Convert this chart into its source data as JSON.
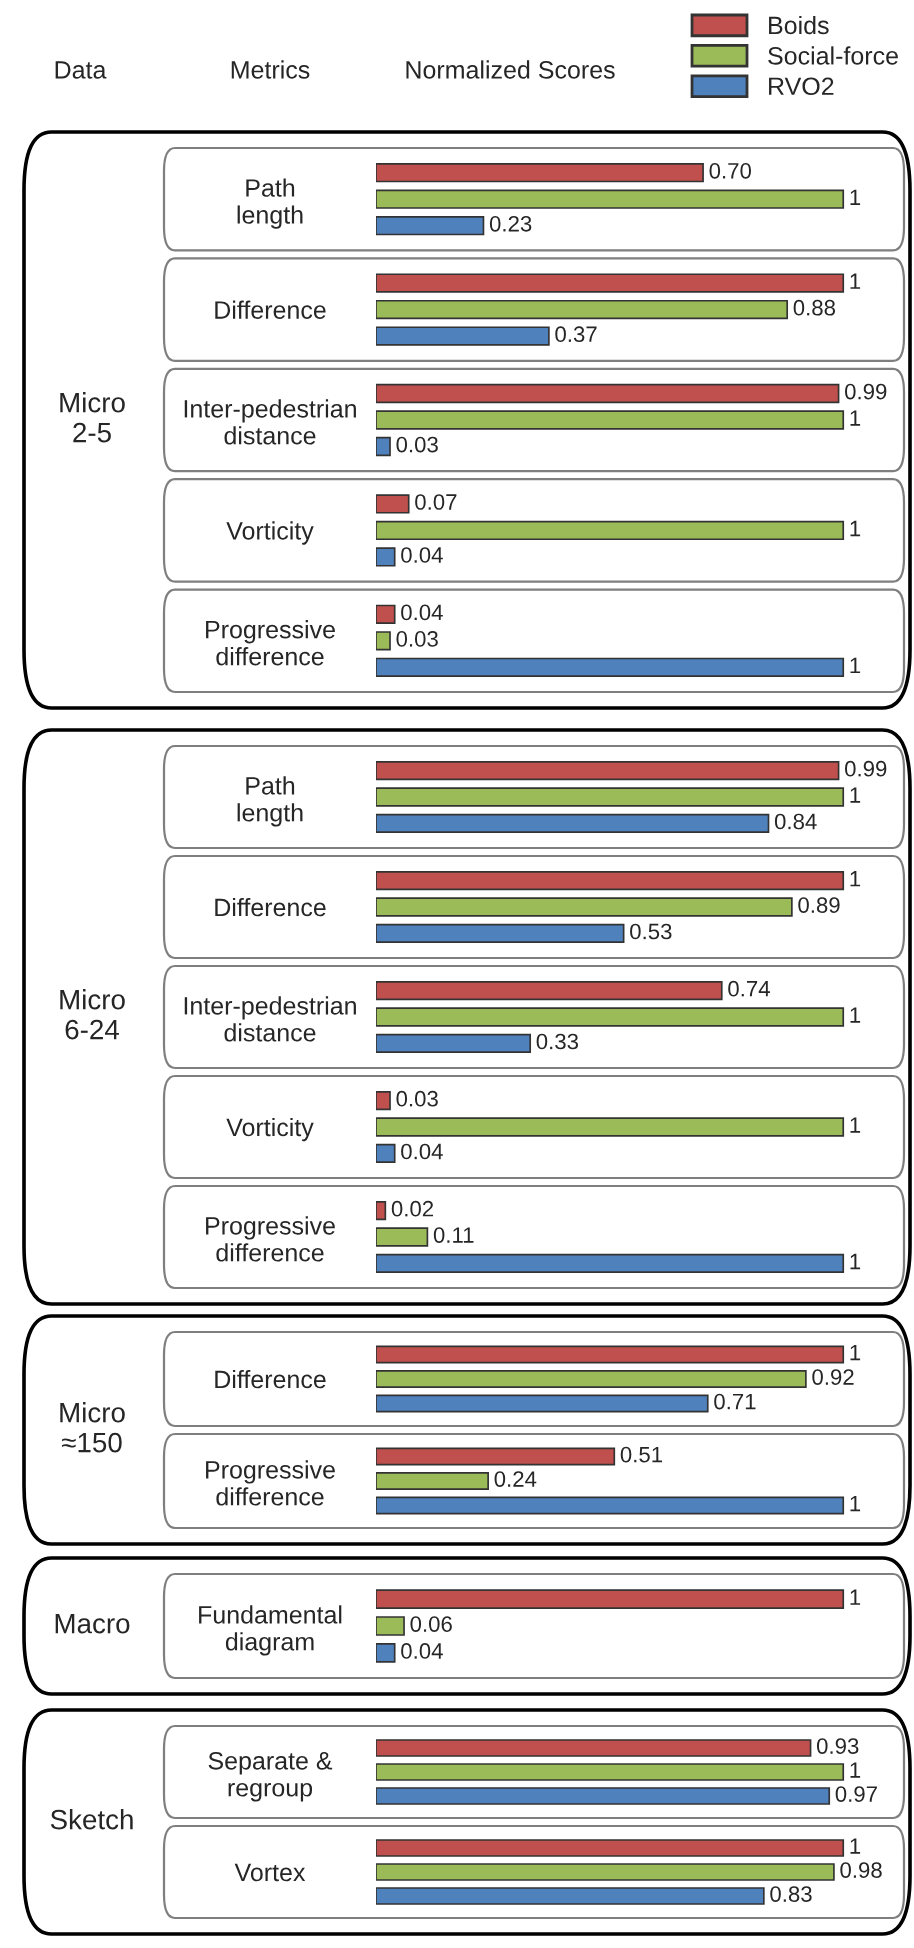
{
  "chart_data": [
    {
      "type": "bar",
      "orientation": "horizontal",
      "title": "Micro 2-5",
      "legend": "top right",
      "tick_labels": "y",
      "annotations": [
        "Data",
        "Metrics",
        "Normalized Scores"
      ],
      "categories": [
        "Path length",
        "Difference",
        "Inter-pedestrian distance",
        "Vorticity",
        "Progressive difference"
      ],
      "series": [
        {
          "name": "Boids",
          "color": "#c0504d",
          "values": [
            0.7,
            1,
            0.99,
            0.07,
            0.04
          ],
          "value_labels": [
            "0.70",
            "1",
            "0.99",
            "0.07",
            "0.04"
          ]
        },
        {
          "name": "Social-force",
          "color": "#9bbb59",
          "values": [
            1,
            0.88,
            1,
            1,
            0.03
          ],
          "value_labels": [
            "1",
            "0.88",
            "1",
            "1",
            "0.03"
          ]
        },
        {
          "name": "RVO2",
          "color": "#4f81bd",
          "values": [
            0.23,
            0.37,
            0.03,
            0.04,
            1
          ],
          "value_labels": [
            "0.23",
            "0.37",
            "0.03",
            "0.04",
            "1"
          ]
        }
      ]
    },
    {
      "type": "bar",
      "orientation": "horizontal",
      "title": "Micro 6-24",
      "tick_labels": "y",
      "categories": [
        "Path length",
        "Difference",
        "Inter-pedestrian distance",
        "Vorticity",
        "Progressive difference"
      ],
      "series": [
        {
          "color": "#c0504d",
          "values": [
            0.99,
            1,
            0.74,
            0.03,
            0.02
          ],
          "value_labels": [
            "0.99",
            "1",
            "0.74",
            "0.03",
            "0.02"
          ]
        },
        {
          "color": "#9bbb59",
          "values": [
            1,
            0.89,
            1,
            1,
            0.11
          ],
          "value_labels": [
            "1",
            "0.89",
            "1",
            "1",
            "0.11"
          ]
        },
        {
          "color": "#4f81bd",
          "values": [
            0.84,
            0.53,
            0.33,
            0.04,
            1
          ],
          "value_labels": [
            "0.84",
            "0.53",
            "0.33",
            "0.04",
            "1"
          ]
        }
      ]
    },
    {
      "type": "bar",
      "orientation": "horizontal",
      "title": "Micro ≈150",
      "tick_labels": "y",
      "categories": [
        "Difference",
        "Progressive difference"
      ],
      "series": [
        {
          "color": "#c0504d",
          "values": [
            1,
            0.51
          ],
          "value_labels": [
            "1",
            "0.51"
          ]
        },
        {
          "color": "#9bbb59",
          "values": [
            0.92,
            0.24
          ],
          "value_labels": [
            "0.92",
            "0.24"
          ]
        },
        {
          "color": "#4f81bd",
          "values": [
            0.71,
            1
          ],
          "value_labels": [
            "0.71",
            "1"
          ]
        }
      ]
    },
    {
      "type": "bar",
      "orientation": "horizontal",
      "title": "Macro",
      "tick_labels": "y",
      "categories": [
        "Fundamental diagram"
      ],
      "series": [
        {
          "color": "#c0504d",
          "values": [
            1
          ],
          "value_labels": [
            "1"
          ]
        },
        {
          "color": "#9bbb59",
          "values": [
            0.06
          ],
          "value_labels": [
            "0.06"
          ]
        },
        {
          "color": "#4f81bd",
          "values": [
            0.04
          ],
          "value_labels": [
            "0.04"
          ]
        }
      ]
    },
    {
      "type": "bar",
      "orientation": "horizontal",
      "title": "Sketch",
      "tick_labels": "y",
      "categories": [
        "Separate & regroup",
        "Vortex"
      ],
      "series": [
        {
          "color": "#c0504d",
          "values": [
            0.93,
            1
          ],
          "value_labels": [
            "0.93",
            "1"
          ]
        },
        {
          "color": "#9bbb59",
          "values": [
            1,
            0.98
          ],
          "value_labels": [
            "1",
            "0.98"
          ]
        },
        {
          "color": "#4f81bd",
          "values": [
            0.97,
            0.83
          ],
          "value_labels": [
            "0.97",
            "0.83"
          ]
        }
      ]
    }
  ]
}
